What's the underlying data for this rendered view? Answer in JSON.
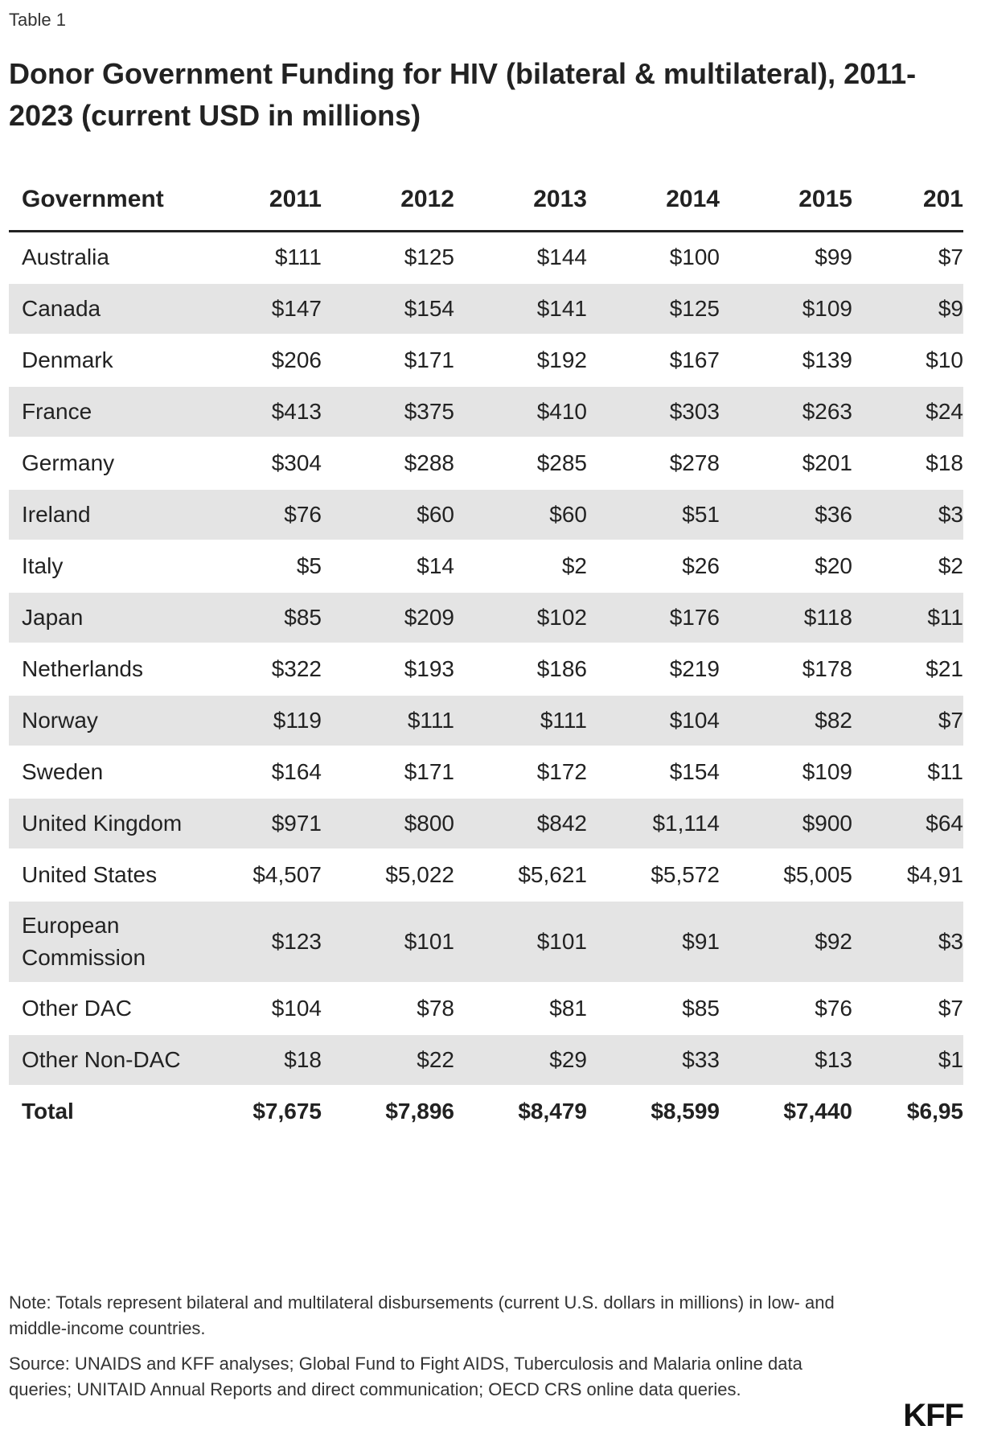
{
  "header": {
    "label": "Table 1",
    "title": "Donor Government Funding for HIV (bilateral & multilateral), 2011-2023 (current USD in millions)"
  },
  "table": {
    "columns": [
      "Government",
      "2011",
      "2012",
      "2013",
      "2014",
      "2015",
      "201"
    ],
    "rows": [
      [
        "Australia",
        "$111",
        "$125",
        "$144",
        "$100",
        "$99",
        "$7"
      ],
      [
        "Canada",
        "$147",
        "$154",
        "$141",
        "$125",
        "$109",
        "$9"
      ],
      [
        "Denmark",
        "$206",
        "$171",
        "$192",
        "$167",
        "$139",
        "$10"
      ],
      [
        "France",
        "$413",
        "$375",
        "$410",
        "$303",
        "$263",
        "$24"
      ],
      [
        "Germany",
        "$304",
        "$288",
        "$285",
        "$278",
        "$201",
        "$18"
      ],
      [
        "Ireland",
        "$76",
        "$60",
        "$60",
        "$51",
        "$36",
        "$3"
      ],
      [
        "Italy",
        "$5",
        "$14",
        "$2",
        "$26",
        "$20",
        "$2"
      ],
      [
        "Japan",
        "$85",
        "$209",
        "$102",
        "$176",
        "$118",
        "$11"
      ],
      [
        "Netherlands",
        "$322",
        "$193",
        "$186",
        "$219",
        "$178",
        "$21"
      ],
      [
        "Norway",
        "$119",
        "$111",
        "$111",
        "$104",
        "$82",
        "$7"
      ],
      [
        "Sweden",
        "$164",
        "$171",
        "$172",
        "$154",
        "$109",
        "$11"
      ],
      [
        "United Kingdom",
        "$971",
        "$800",
        "$842",
        "$1,114",
        "$900",
        "$64"
      ],
      [
        "United States",
        "$4,507",
        "$5,022",
        "$5,621",
        "$5,572",
        "$5,005",
        "$4,91"
      ],
      [
        "European Commission",
        "$123",
        "$101",
        "$101",
        "$91",
        "$92",
        "$3"
      ],
      [
        "Other DAC",
        "$104",
        "$78",
        "$81",
        "$85",
        "$76",
        "$7"
      ],
      [
        "Other Non-DAC",
        "$18",
        "$22",
        "$29",
        "$33",
        "$13",
        "$1"
      ]
    ],
    "total": [
      "Total",
      "$7,675",
      "$7,896",
      "$8,479",
      "$8,599",
      "$7,440",
      "$6,95"
    ]
  },
  "note": "Note: Totals represent bilateral and multilateral disbursements (current U.S. dollars in millions) in low- and middle-income countries.",
  "source": "Source: UNAIDS and KFF analyses; Global Fund to Fight AIDS, Tuberculosis and Malaria online data queries; UNITAID Annual Reports and direct communication; OECD CRS online data queries.",
  "logo": "KFF"
}
